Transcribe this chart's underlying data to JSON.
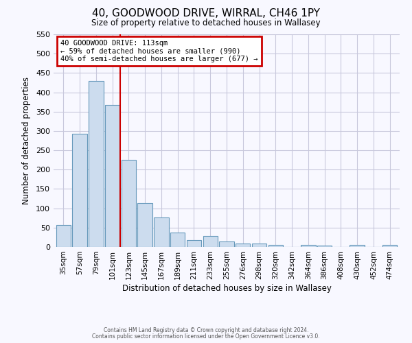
{
  "title": "40, GOODWOOD DRIVE, WIRRAL, CH46 1PY",
  "subtitle": "Size of property relative to detached houses in Wallasey",
  "xlabel": "Distribution of detached houses by size in Wallasey",
  "ylabel": "Number of detached properties",
  "bar_labels": [
    "35sqm",
    "57sqm",
    "79sqm",
    "101sqm",
    "123sqm",
    "145sqm",
    "167sqm",
    "189sqm",
    "211sqm",
    "233sqm",
    "255sqm",
    "276sqm",
    "298sqm",
    "320sqm",
    "342sqm",
    "364sqm",
    "386sqm",
    "408sqm",
    "430sqm",
    "452sqm",
    "474sqm"
  ],
  "bar_values": [
    57,
    293,
    430,
    368,
    226,
    113,
    76,
    38,
    18,
    29,
    15,
    8,
    8,
    6,
    0,
    5,
    3,
    0,
    5,
    0,
    5
  ],
  "bar_color": "#ccdcee",
  "bar_edge_color": "#6699bb",
  "vline_x": 3.5,
  "vline_color": "#cc0000",
  "annotation_title": "40 GOODWOOD DRIVE: 113sqm",
  "annotation_line1": "← 59% of detached houses are smaller (990)",
  "annotation_line2": "40% of semi-detached houses are larger (677) →",
  "annotation_box_edgecolor": "#cc0000",
  "ylim": [
    0,
    550
  ],
  "yticks": [
    0,
    50,
    100,
    150,
    200,
    250,
    300,
    350,
    400,
    450,
    500,
    550
  ],
  "footer1": "Contains HM Land Registry data © Crown copyright and database right 2024.",
  "footer2": "Contains public sector information licensed under the Open Government Licence v3.0.",
  "bg_color": "#f8f8ff",
  "grid_color": "#c8c8dc"
}
